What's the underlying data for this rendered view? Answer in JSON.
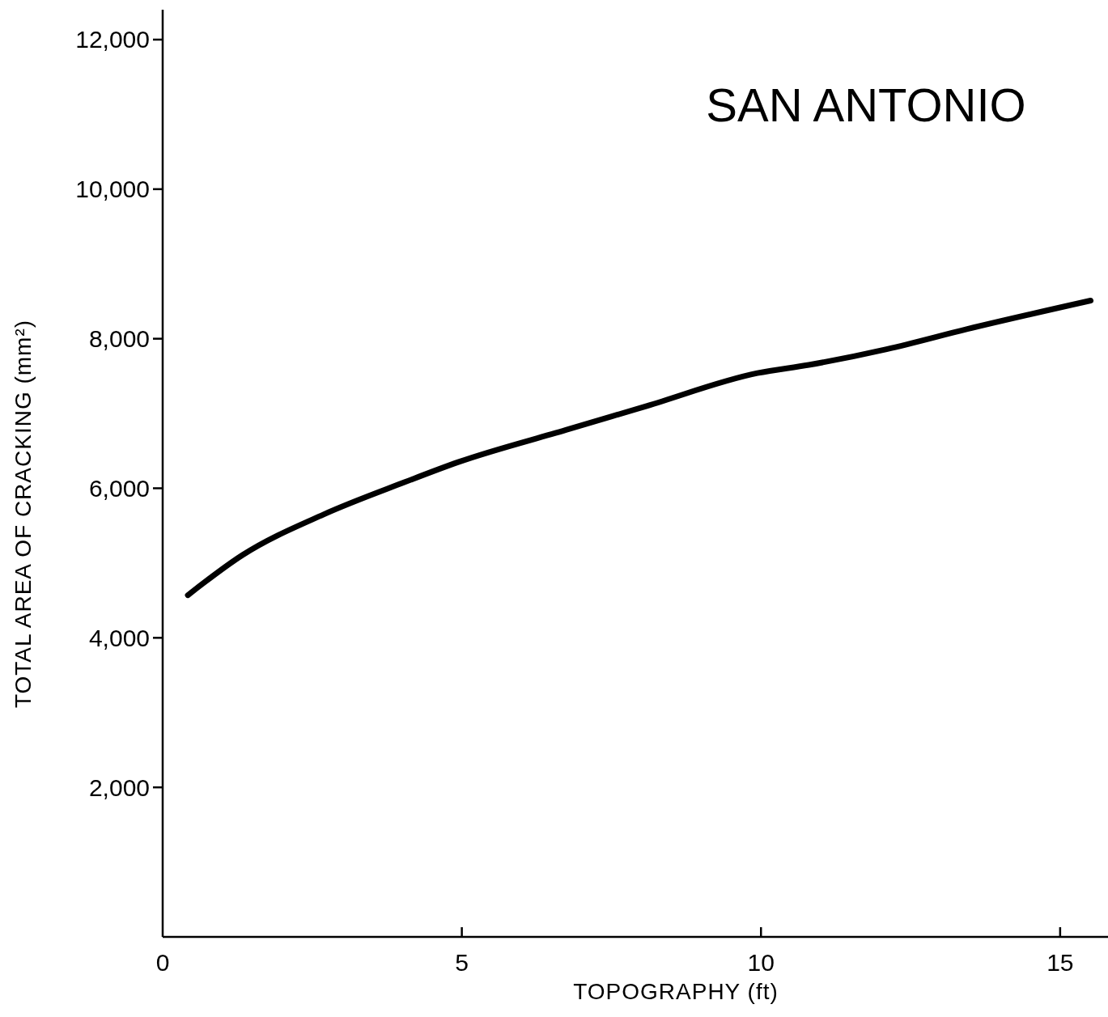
{
  "chart_data": {
    "type": "line",
    "title": "SAN ANTONIO",
    "xlabel": "TOPOGRAPHY (ft)",
    "ylabel": "TOTAL AREA OF CRACKING (mm²)",
    "x": [
      0.42,
      1.34,
      2.69,
      4.04,
      4.94,
      6.74,
      8.09,
      9.94,
      10.8,
      12.1,
      13.45,
      15.51
    ],
    "series": [
      {
        "color": "#000000",
        "values": [
          4570,
          5110,
          5650,
          6080,
          6350,
          6780,
          7100,
          7540,
          7650,
          7860,
          8130,
          8510
        ]
      }
    ],
    "xlim": [
      0,
      15.8
    ],
    "ylim": [
      0,
      12400
    ],
    "xticks": [
      0,
      5,
      10,
      15
    ],
    "yticks": [
      {
        "value": 2000,
        "label": "2,000"
      },
      {
        "value": 4000,
        "label": "4,000"
      },
      {
        "value": 6000,
        "label": "6,000"
      },
      {
        "value": 8000,
        "label": "8,000"
      },
      {
        "value": 10000,
        "label": "10,000"
      },
      {
        "value": 12000,
        "label": "12,000"
      }
    ],
    "marker": "none",
    "line_style": "solid"
  }
}
